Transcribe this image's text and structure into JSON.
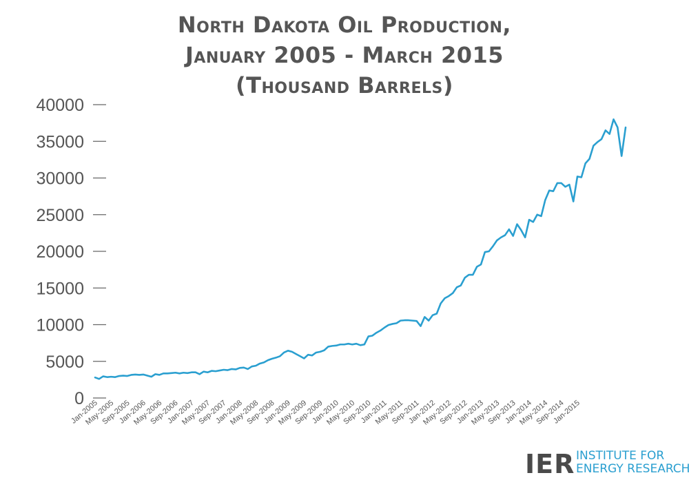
{
  "chart_data": {
    "type": "line",
    "title_lines": [
      "North Dakota Oil Production,",
      "January 2005 - March 2015",
      "(Thousand Barrels)"
    ],
    "ylim": [
      0,
      40000
    ],
    "yticks": [
      "0",
      "5000",
      "10000",
      "15000",
      "20000",
      "25000",
      "30000",
      "35000",
      "40000"
    ],
    "ytick_values": [
      0,
      5000,
      10000,
      15000,
      20000,
      25000,
      30000,
      35000,
      40000
    ],
    "xtick_labels": [
      "Jan-2005",
      "May-2005",
      "Sep-2005",
      "Jan-2006",
      "May-2006",
      "Sep-2006",
      "Jan-2007",
      "May-2007",
      "Sep-2007",
      "Jan-2008",
      "May-2008",
      "Sep-2008",
      "Jan-2009",
      "May-2009",
      "Sep-2009",
      "Jan-2010",
      "May-2010",
      "Sep-2010",
      "Jan-2011",
      "May-2011",
      "Sep-2011",
      "Jan-2012",
      "May-2012",
      "Sep-2012",
      "Jan-2013",
      "May-2013",
      "Sep-2013",
      "Jan-2014",
      "May-2014",
      "Sep-2014",
      "Jan-2015"
    ],
    "x_start": "Jan-2005",
    "x_end": "Mar-2015",
    "grid": false,
    "line_color": "#2a9fd0",
    "series": [
      {
        "values": [
          2800,
          2600,
          2950,
          2850,
          2900,
          2850,
          3000,
          3050,
          3000,
          3150,
          3200,
          3150,
          3200,
          3050,
          2900,
          3250,
          3150,
          3350,
          3350,
          3400,
          3450,
          3350,
          3450,
          3400,
          3500,
          3500,
          3250,
          3600,
          3500,
          3700,
          3650,
          3750,
          3850,
          3800,
          3950,
          3900,
          4100,
          4150,
          3950,
          4300,
          4400,
          4700,
          4850,
          5150,
          5350,
          5500,
          5700,
          6200,
          6450,
          6300,
          6000,
          5700,
          5400,
          5900,
          5800,
          6200,
          6300,
          6500,
          7000,
          7100,
          7150,
          7300,
          7300,
          7400,
          7300,
          7400,
          7200,
          7300,
          8400,
          8500,
          8900,
          9200,
          9600,
          9950,
          10100,
          10200,
          10550,
          10600,
          10600,
          10550,
          10500,
          9800,
          11050,
          10550,
          11300,
          11500,
          12900,
          13600,
          13900,
          14300,
          15100,
          15350,
          16400,
          16800,
          16800,
          17900,
          18200,
          19900,
          20000,
          20700,
          21500,
          21900,
          22200,
          23000,
          22100,
          23700,
          22900,
          21900,
          24300,
          24000,
          25000,
          24800,
          27000,
          28300,
          28200,
          29300,
          29300,
          28800,
          29100,
          26800,
          30200,
          30100,
          32000,
          32600,
          34400,
          34900,
          35300,
          36500,
          36000,
          38000,
          36900,
          33000,
          36900
        ]
      }
    ]
  },
  "logo": {
    "mark": "IER",
    "line1": "INSTITUTE FOR",
    "line2": "ENERGY RESEARCH"
  }
}
